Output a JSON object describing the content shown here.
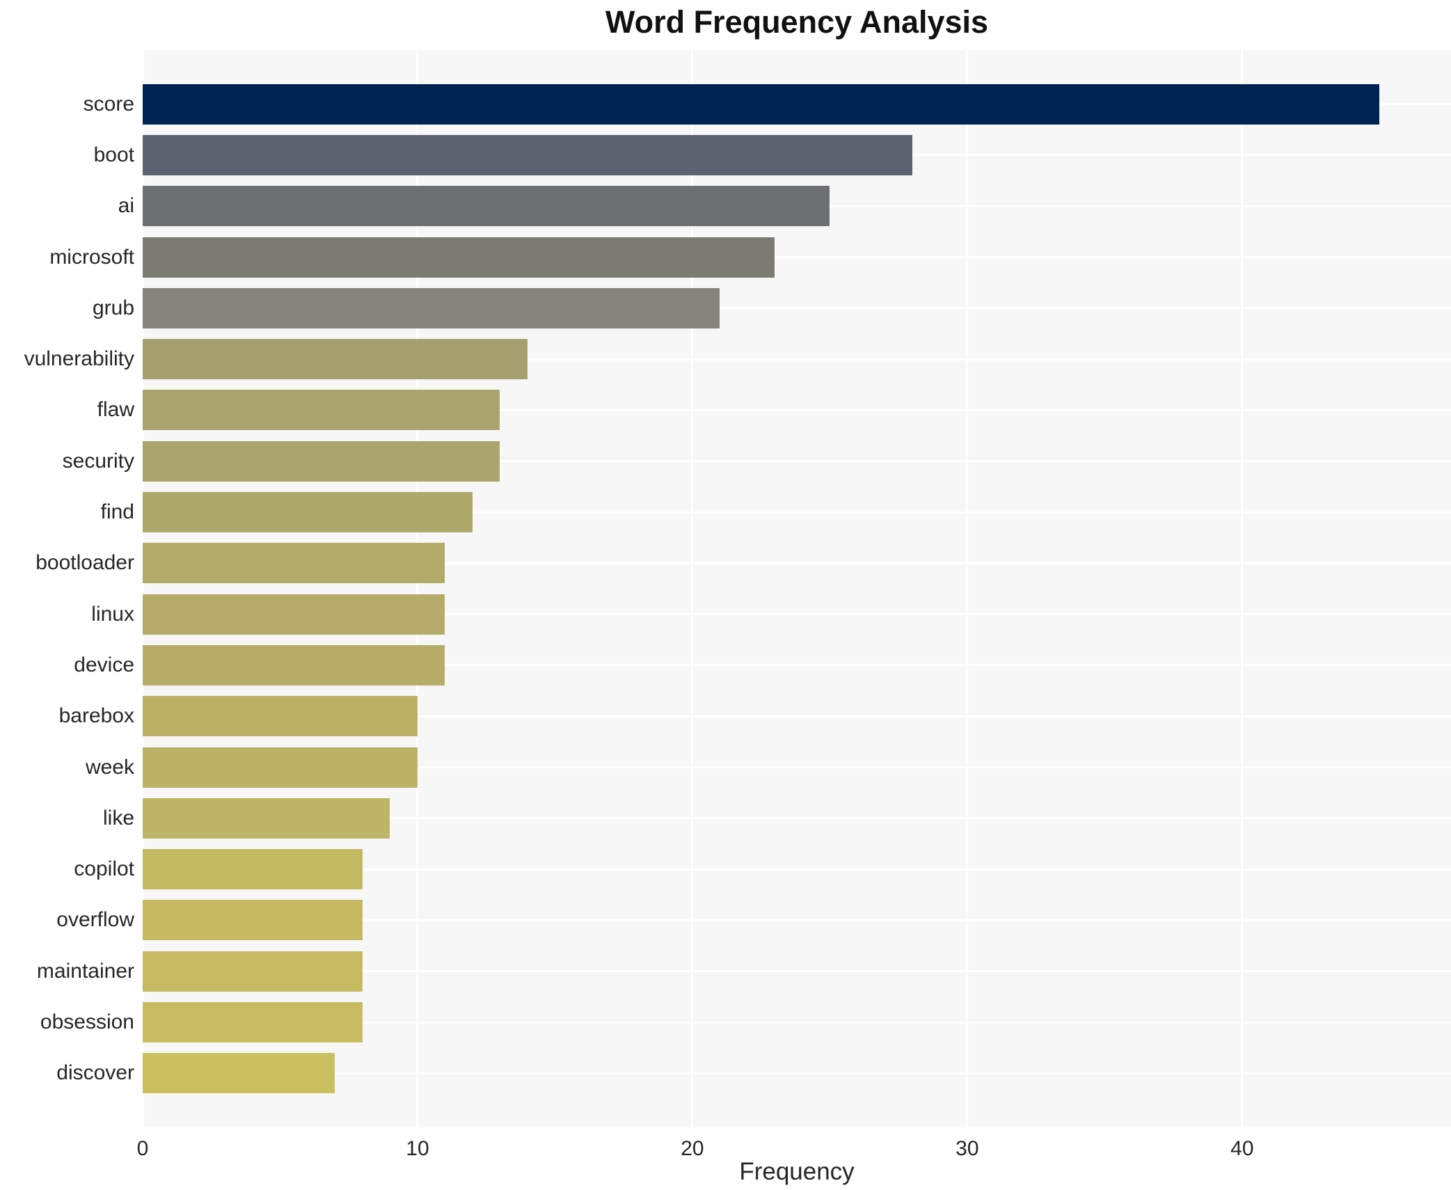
{
  "title": "Word Frequency Analysis",
  "chart_data": {
    "type": "bar",
    "orientation": "horizontal",
    "title": "Word Frequency Analysis",
    "xlabel": "Frequency",
    "ylabel": "",
    "categories": [
      "score",
      "boot",
      "ai",
      "microsoft",
      "grub",
      "vulnerability",
      "flaw",
      "security",
      "find",
      "bootloader",
      "linux",
      "device",
      "barebox",
      "week",
      "like",
      "copilot",
      "overflow",
      "maintainer",
      "obsession",
      "discover"
    ],
    "values": [
      45,
      28,
      25,
      23,
      21,
      14,
      13,
      13,
      12,
      11,
      11,
      11,
      10,
      10,
      9,
      8,
      8,
      8,
      8,
      7
    ],
    "bar_colors": [
      "#002452",
      "#5c6370",
      "#6e6f70",
      "#7b7b73",
      "#85837b",
      "#a7a06e",
      "#a9a36c",
      "#aba46c",
      "#aea86a",
      "#b1aa69",
      "#b4ac68",
      "#b5ad68",
      "#b9b066",
      "#bbb266",
      "#beb465",
      "#c3b963",
      "#c5ba62",
      "#c6bb62",
      "#c7bc61",
      "#cbc05f"
    ],
    "xlim": [
      0,
      47.6
    ],
    "xticks": [
      0,
      10,
      20,
      30,
      40
    ],
    "grid": true,
    "legend": false,
    "plot_bg_color": "#f7f7f7",
    "grid_color": "#ffffff",
    "text_color": "#262626"
  }
}
